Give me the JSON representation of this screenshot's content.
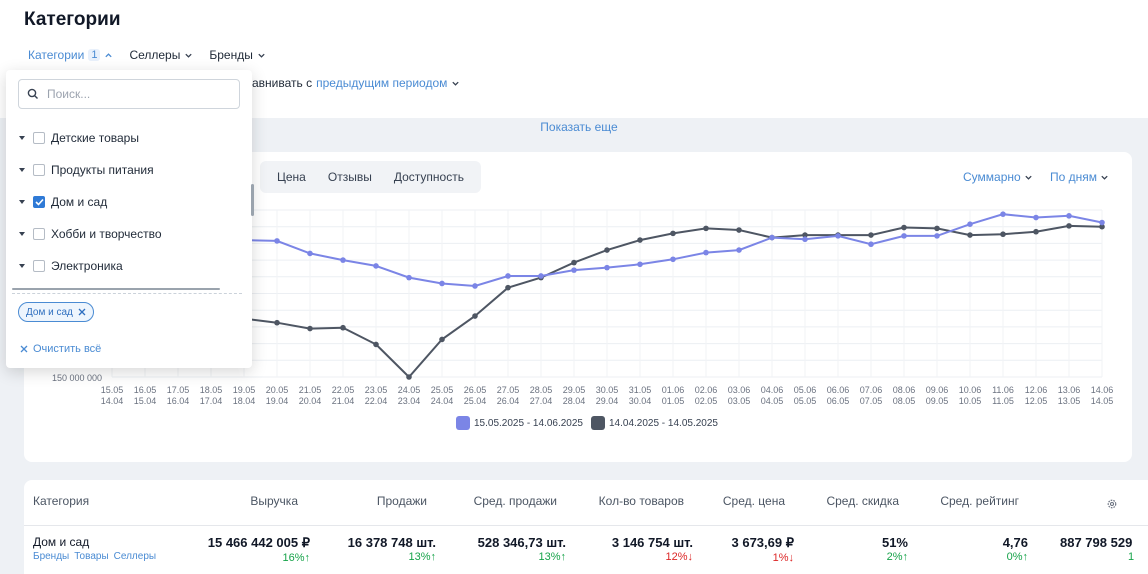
{
  "page": {
    "title": "Категории"
  },
  "filters": {
    "categories_label": "Категории",
    "categories_count": "1",
    "sellers_label": "Селлеры",
    "brands_label": "Бренды"
  },
  "compare": {
    "prefix": "авнивать с",
    "period_link": "предыдущим периодом"
  },
  "show_more": "Показать еще",
  "metric_tabs": [
    "Цена",
    "Отзывы",
    "Доступность"
  ],
  "chart_controls": {
    "aggregation": "Суммарно",
    "granularity": "По дням"
  },
  "colors": {
    "current_series": "#7b85e6",
    "previous_series": "#4e5663",
    "accent": "#4a8bd3",
    "up": "#16a34a",
    "down": "#dc2626"
  },
  "dropdown": {
    "search_placeholder": "Поиск...",
    "items": [
      {
        "label": "Детские товары",
        "checked": false
      },
      {
        "label": "Продукты питания",
        "checked": false
      },
      {
        "label": "Дом и сад",
        "checked": true
      },
      {
        "label": "Хобби и творчество",
        "checked": false
      },
      {
        "label": "Электроника",
        "checked": false
      }
    ],
    "selected_chip": "Дом и сад",
    "clear_all": "Очистить всё"
  },
  "chart_data": {
    "type": "line",
    "ylabel": "",
    "visible_tick_label": "150 000 000",
    "ylim": [
      150000000,
      350000000
    ],
    "x_current": [
      "15.05",
      "16.05",
      "17.05",
      "18.05",
      "19.05",
      "20.05",
      "21.05",
      "22.05",
      "23.05",
      "24.05",
      "25.05",
      "26.05",
      "27.05",
      "28.05",
      "29.05",
      "30.05",
      "31.05",
      "01.06",
      "02.06",
      "03.06",
      "04.06",
      "05.06",
      "06.06",
      "07.06",
      "08.06",
      "09.06",
      "10.06",
      "11.06",
      "12.06",
      "13.06",
      "14.06"
    ],
    "x_previous": [
      "14.04",
      "15.04",
      "16.04",
      "17.04",
      "18.04",
      "19.04",
      "20.04",
      "21.04",
      "22.04",
      "23.04",
      "24.04",
      "25.04",
      "26.04",
      "27.04",
      "28.04",
      "29.04",
      "30.04",
      "01.05",
      "02.05",
      "03.05",
      "04.05",
      "05.05",
      "06.05",
      "07.05",
      "08.05",
      "09.05",
      "10.05",
      "11.05",
      "12.05",
      "13.05",
      "14.05"
    ],
    "series": [
      {
        "name": "15.05.2025 - 14.06.2025",
        "values": [
          null,
          null,
          null,
          null,
          314000000,
          313000000,
          298000000,
          290000000,
          283000000,
          269000000,
          262000000,
          259000000,
          271000000,
          271000000,
          278000000,
          281000000,
          285000000,
          291000000,
          299000000,
          302000000,
          317000000,
          315000000,
          319000000,
          309000000,
          319000000,
          319000000,
          333000000,
          345000000,
          341000000,
          343000000,
          335000000
        ]
      },
      {
        "name": "14.04.2025 - 14.05.2025",
        "values": [
          null,
          null,
          null,
          null,
          220000000,
          215000000,
          208000000,
          209000000,
          189000000,
          150000000,
          195000000,
          223000000,
          257000000,
          269000000,
          287000000,
          302000000,
          314000000,
          322000000,
          328000000,
          326000000,
          317000000,
          320000000,
          320000000,
          320000000,
          329000000,
          328000000,
          320000000,
          321000000,
          324000000,
          331000000,
          330000000
        ]
      }
    ]
  },
  "table": {
    "headers": {
      "category": "Категория",
      "revenue": "Выручка",
      "sales": "Продажи",
      "avg_sales": "Сред. продажи",
      "products": "Кол-во товаров",
      "avg_price": "Сред. цена",
      "avg_discount": "Сред. скидка",
      "avg_rating": "Сред. рейтинг"
    },
    "row": {
      "name": "Дом и сад",
      "links": [
        "Бренды",
        "Товары",
        "Селлеры"
      ],
      "revenue": "15 466 442 005 ₽",
      "revenue_delta": "16%",
      "sales": "16 378 748 шт.",
      "sales_delta": "13%",
      "avg_sales": "528 346,73 шт.",
      "avg_sales_delta": "13%",
      "products": "3 146 754 шт.",
      "products_delta": "12%",
      "avg_price": "3 673,69 ₽",
      "avg_price_delta": "1%",
      "avg_discount": "51%",
      "avg_discount_delta": "2%",
      "avg_rating": "4,76",
      "avg_rating_delta": "0%",
      "extra": "887 798 529",
      "extra_delta": "1"
    }
  }
}
